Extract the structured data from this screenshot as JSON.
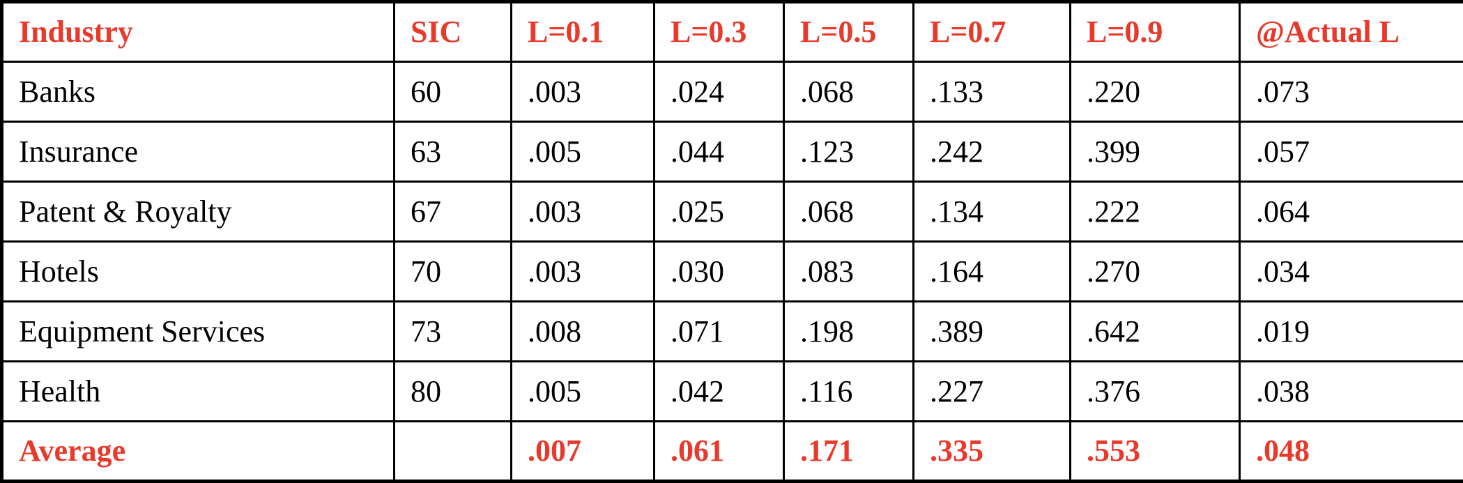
{
  "accent_color": "#e8392b",
  "table": {
    "headers": [
      "Industry",
      "SIC",
      "L=0.1",
      "L=0.3",
      "L=0.5",
      "L=0.7",
      "L=0.9",
      "@Actual L"
    ],
    "rows": [
      [
        "Banks",
        "60",
        ".003",
        ".024",
        ".068",
        ".133",
        ".220",
        ".073"
      ],
      [
        "Insurance",
        "63",
        ".005",
        ".044",
        ".123",
        ".242",
        ".399",
        ".057"
      ],
      [
        "Patent & Royalty",
        "67",
        ".003",
        ".025",
        ".068",
        ".134",
        ".222",
        ".064"
      ],
      [
        "Hotels",
        "70",
        ".003",
        ".030",
        ".083",
        ".164",
        ".270",
        ".034"
      ],
      [
        "Equipment Services",
        "73",
        ".008",
        ".071",
        ".198",
        ".389",
        ".642",
        ".019"
      ],
      [
        "Health",
        "80",
        ".005",
        ".042",
        ".116",
        ".227",
        ".376",
        ".038"
      ]
    ],
    "average": [
      "Average",
      "",
      ".007",
      ".061",
      ".171",
      ".335",
      ".553",
      ".048"
    ]
  }
}
